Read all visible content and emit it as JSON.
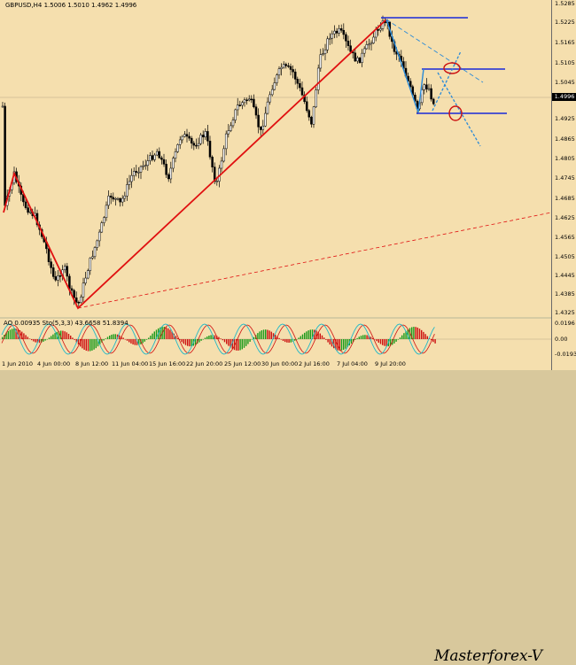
{
  "header": {
    "symbol_info": "GBPUSD,H4  1.5006 1.5010 1.4962 1.4996"
  },
  "indicators": {
    "info": "AO 0.00935  Sto(5,3,3) 43.6658 51.8394"
  },
  "price_axis": {
    "ticks": [
      "1.5285",
      "1.5225",
      "1.5165",
      "1.5105",
      "1.5045",
      "1.4925",
      "1.4865",
      "1.4805",
      "1.4745",
      "1.4685",
      "1.4625",
      "1.4565",
      "1.4505",
      "1.4445",
      "1.4385",
      "1.4325"
    ],
    "current_price": "1.4996"
  },
  "oscillator_axis": {
    "ticks": [
      "0.0196",
      "0.00",
      "-0.0193"
    ]
  },
  "time_axis": {
    "ticks": [
      "1 Jun 2010",
      "4 Jun 00:00",
      "8 Jun 12:00",
      "11 Jun 04:00",
      "15 Jun 16:00",
      "22 Jun 20:00",
      "25 Jun 12:00",
      "30 Jun 00:00",
      "2 Jul 16:00",
      "7 Jul 04:00",
      "9 Jul 20:00"
    ]
  },
  "watermark": "Masterforex-V",
  "colors": {
    "background": "#f5dfae",
    "bull_candle": "#ffffff",
    "bear_candle": "#000000",
    "zigzag": "#e01010",
    "level_lines": "#1a2ad8",
    "projection": "#2a8ad8",
    "target_circle": "#cc1010",
    "ao_up": "#1a9a1a",
    "ao_down": "#cc1010",
    "stoch_main": "#20b8c8",
    "stoch_signal": "#d01010"
  }
}
